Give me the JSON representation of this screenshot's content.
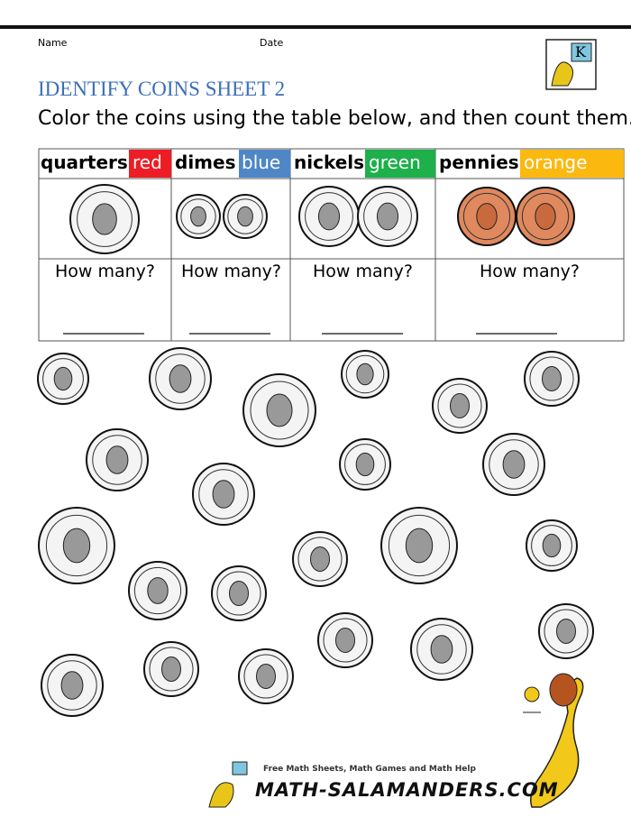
{
  "header": {
    "name_label": "Name",
    "date_label": "Date",
    "logo_letter": "K"
  },
  "title": "IDENTIFY COINS SHEET 2",
  "instruction": "Color the coins using the table below, and then count them.",
  "table": {
    "columns": [
      {
        "coin": "quarters",
        "color": "red",
        "prompt": "How many?"
      },
      {
        "coin": "dimes",
        "color": "blue",
        "prompt": "How many?"
      },
      {
        "coin": "nickels",
        "color": "green",
        "prompt": "How many?"
      },
      {
        "coin": "pennies",
        "color": "orange",
        "prompt": "How many?"
      }
    ]
  },
  "footer": {
    "tagline": "Free Math Sheets, Math Games and Math Help",
    "site": "MATH-SALAMANDERS.COM"
  }
}
